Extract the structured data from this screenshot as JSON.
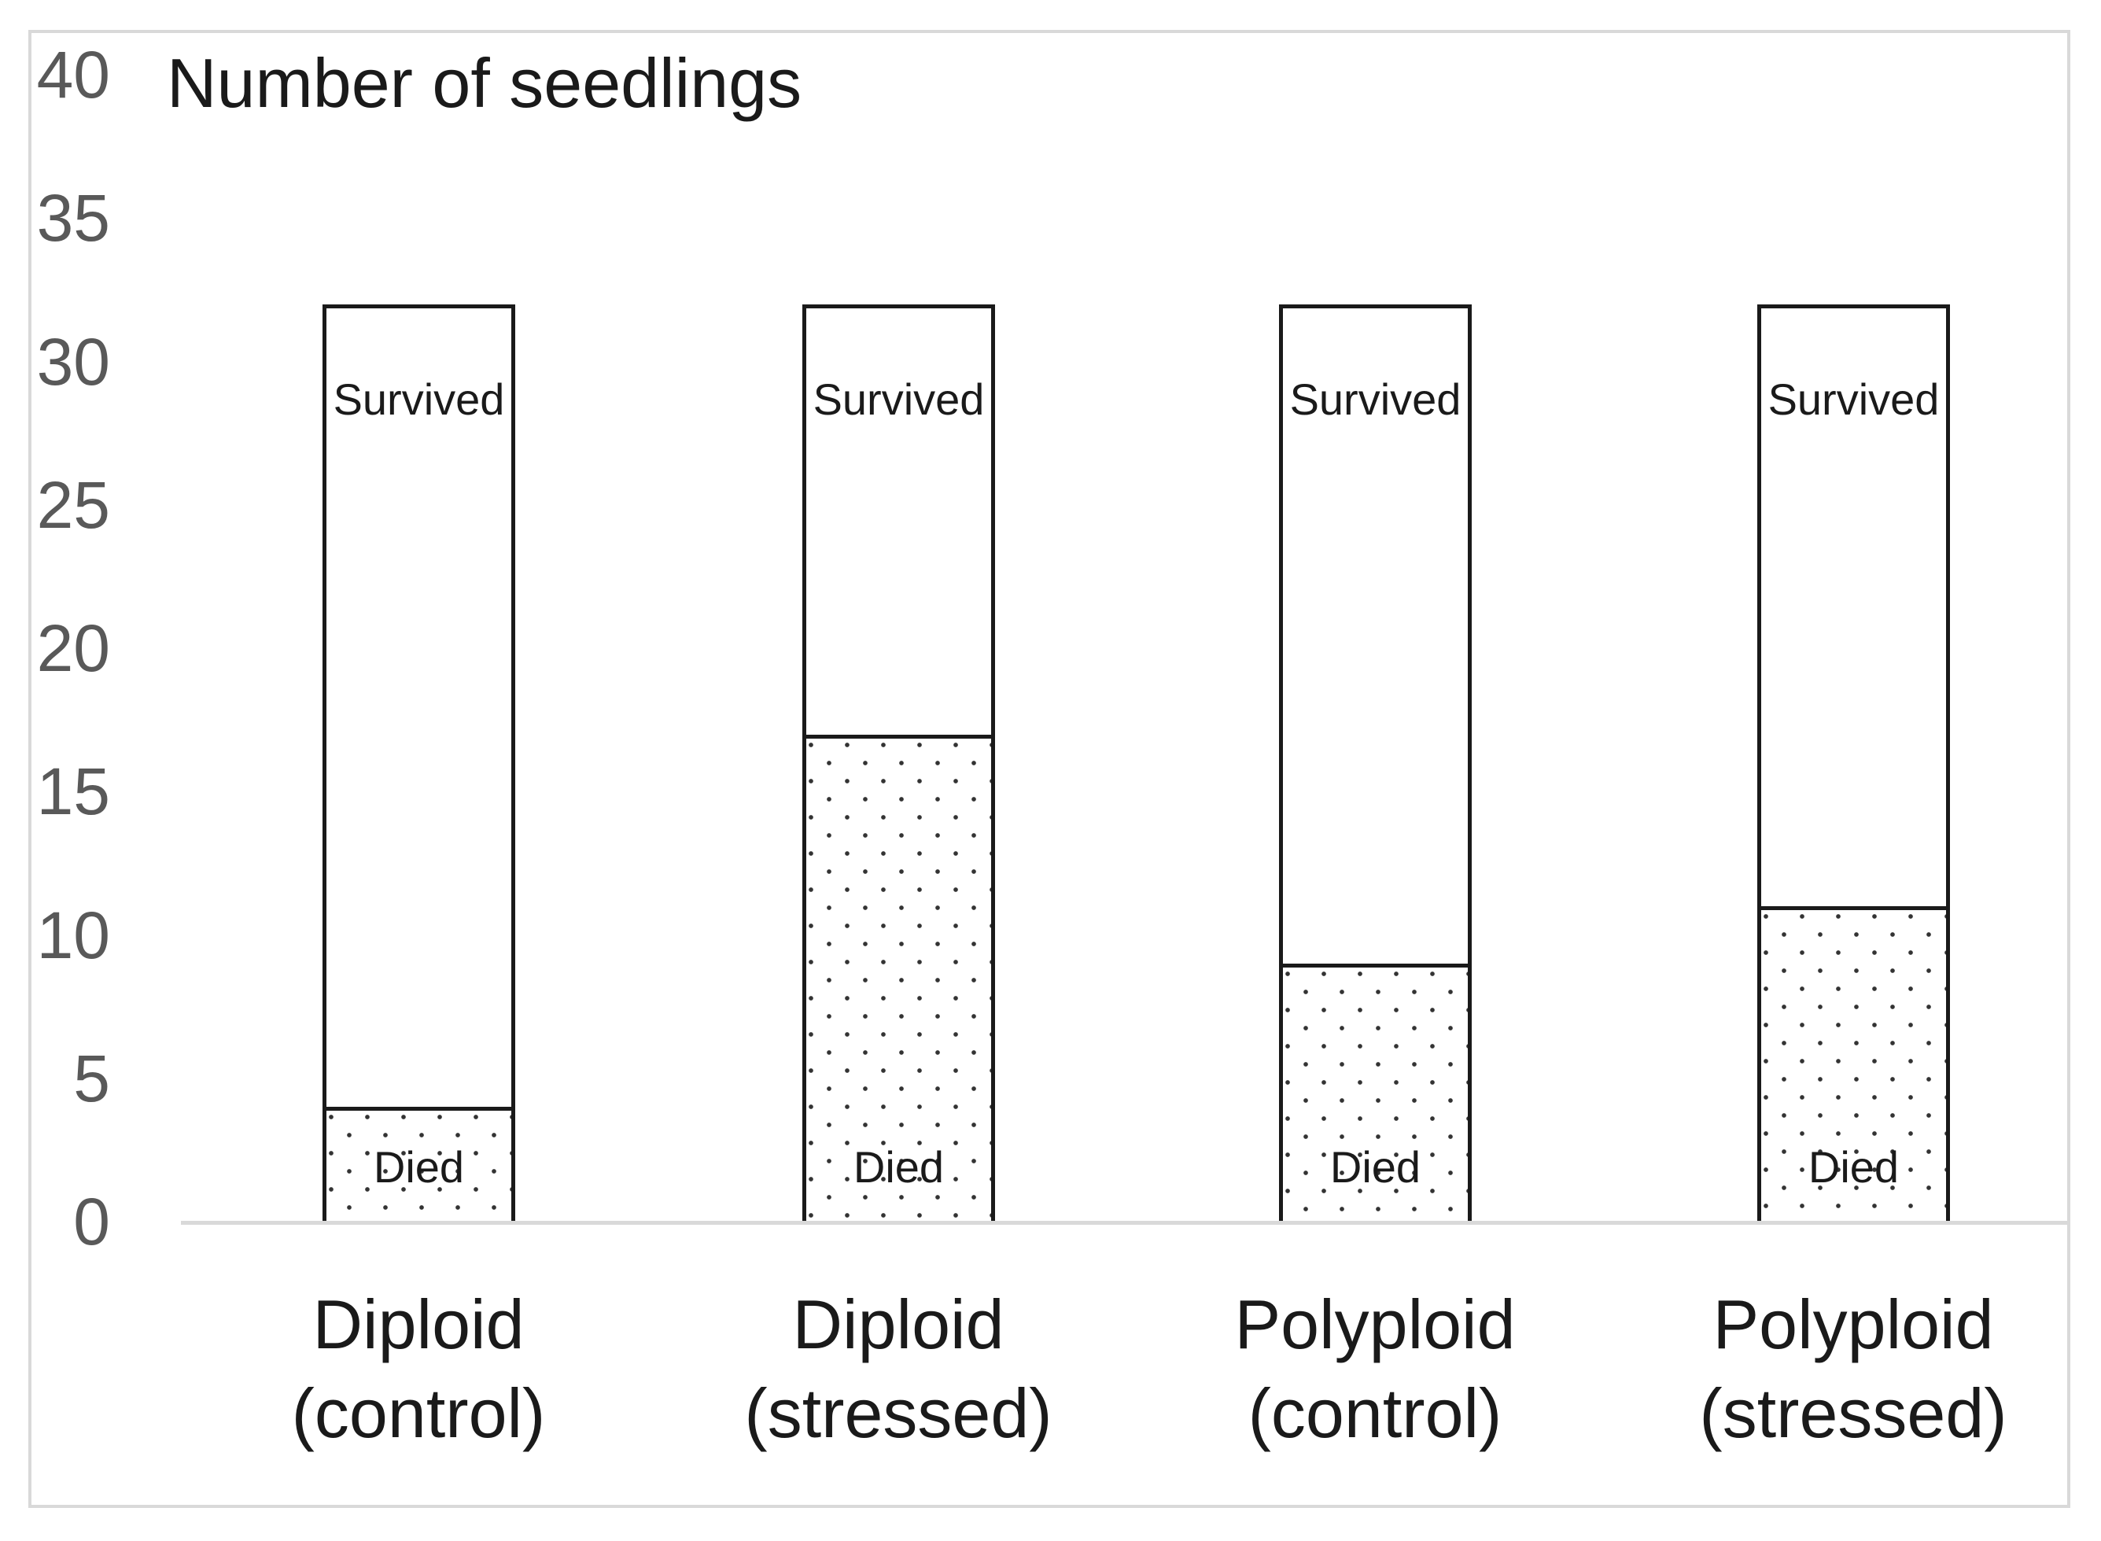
{
  "chart_data": {
    "type": "bar",
    "stacked": true,
    "title": "Number of seedlings",
    "categories": [
      {
        "line1": "Diploid",
        "line2": "(control)"
      },
      {
        "line1": "Diploid",
        "line2": "(stressed)"
      },
      {
        "line1": "Polyploid",
        "line2": "(control)"
      },
      {
        "line1": "Polyploid",
        "line2": "(stressed)"
      }
    ],
    "series": [
      {
        "name": "Died",
        "values": [
          4,
          17,
          9,
          11
        ]
      },
      {
        "name": "Survived",
        "values": [
          28,
          15,
          23,
          21
        ]
      }
    ],
    "bar_totals": [
      32,
      32,
      32,
      32
    ],
    "xlabel": "",
    "ylabel": "Number of seedlings",
    "ylim": [
      0,
      40
    ],
    "y_tick_step": 5,
    "grid": false,
    "legend_position": "none (labels inside bars)"
  },
  "y_axis": {
    "ticks": [
      "40",
      "35",
      "30",
      "25",
      "20",
      "15",
      "10",
      "5",
      "0"
    ]
  },
  "appearance": {
    "frame_color": "#d9d9d9",
    "axis_line_color": "#d9d9d9",
    "bar_border_color": "#1a1a1a",
    "died_dot_color": "#333333",
    "tick_label_color": "#595959",
    "text_color": "#1a1a1a",
    "died_fill": "dotted pattern on white",
    "survived_fill": "#ffffff"
  }
}
